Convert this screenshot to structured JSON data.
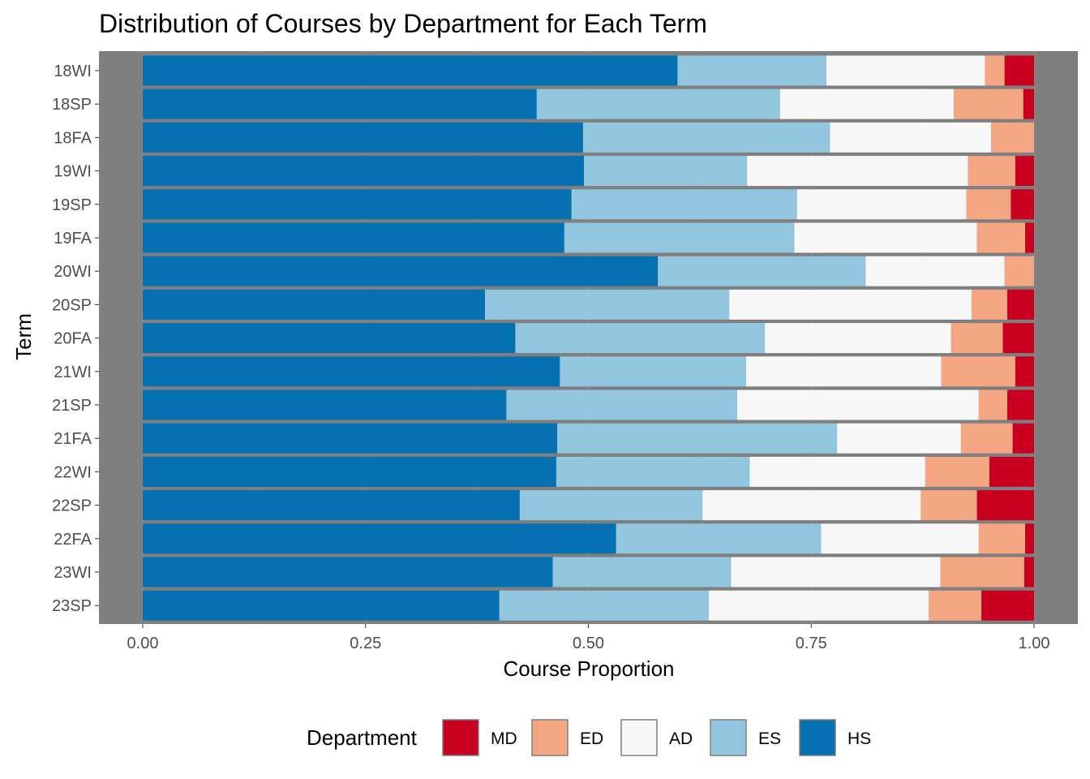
{
  "chart_data": {
    "type": "bar",
    "orientation": "horizontal",
    "stacked": "fill",
    "title": "Distribution of Courses by Department for Each Term",
    "xlabel": "Course Proportion",
    "ylabel": "Term",
    "xlim": [
      0,
      1
    ],
    "x_ticks": [
      "0.00",
      "0.25",
      "0.50",
      "0.75",
      "1.00"
    ],
    "categories": [
      "18WI",
      "18SP",
      "18FA",
      "19WI",
      "19SP",
      "19FA",
      "20WI",
      "20SP",
      "20FA",
      "21WI",
      "21SP",
      "21FA",
      "22WI",
      "22SP",
      "22FA",
      "23WI",
      "23SP"
    ],
    "series": [
      {
        "name": "HS",
        "color": "#0571b0",
        "values": [
          0.6,
          0.442,
          0.494,
          0.495,
          0.481,
          0.473,
          0.578,
          0.384,
          0.418,
          0.468,
          0.408,
          0.465,
          0.464,
          0.423,
          0.531,
          0.46,
          0.4
        ]
      },
      {
        "name": "ES",
        "color": "#92c5de",
        "values": [
          0.167,
          0.273,
          0.277,
          0.183,
          0.253,
          0.258,
          0.233,
          0.274,
          0.28,
          0.209,
          0.259,
          0.314,
          0.217,
          0.205,
          0.23,
          0.2,
          0.235
        ]
      },
      {
        "name": "AD",
        "color": "#f7f7f7",
        "values": [
          0.178,
          0.195,
          0.181,
          0.248,
          0.19,
          0.205,
          0.156,
          0.272,
          0.209,
          0.219,
          0.271,
          0.139,
          0.197,
          0.245,
          0.177,
          0.235,
          0.247
        ]
      },
      {
        "name": "ED",
        "color": "#f4a582",
        "values": [
          0.022,
          0.078,
          0.048,
          0.053,
          0.05,
          0.054,
          0.033,
          0.04,
          0.058,
          0.083,
          0.032,
          0.058,
          0.072,
          0.063,
          0.052,
          0.094,
          0.059
        ]
      },
      {
        "name": "MD",
        "color": "#ca0020",
        "values": [
          0.033,
          0.012,
          0.0,
          0.021,
          0.026,
          0.01,
          0.0,
          0.03,
          0.035,
          0.021,
          0.03,
          0.024,
          0.05,
          0.064,
          0.01,
          0.011,
          0.059
        ]
      }
    ],
    "legend": {
      "title": "Department",
      "position": "bottom",
      "order": [
        "MD",
        "ED",
        "AD",
        "ES",
        "HS"
      ]
    },
    "panel_background": "#7f7f7f",
    "grid": true
  }
}
